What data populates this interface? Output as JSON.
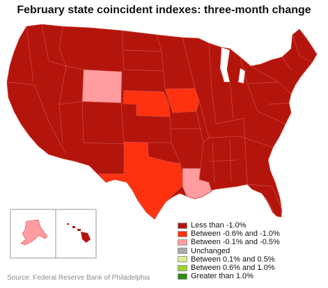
{
  "title": "February state coincident indexes: three-month change",
  "source": "Source: Federal Reserve Bank of Philadelphia",
  "colors": {
    "less_than_neg1": "#b3150c",
    "neg06_neg1": "#ff3210",
    "neg01_neg05": "#ff9ca0",
    "unchanged": "#aaaaaa",
    "pos01_05": "#d7ef8c",
    "pos06_10": "#9bd62a",
    "greater_than_1": "#2e8b12",
    "border": "#d24a40"
  },
  "legend": [
    {
      "label": "Less than -1.0%",
      "color": "#b3150c"
    },
    {
      "label": "Between -0.6% and -1.0%",
      "color": "#ff3210"
    },
    {
      "label": "Between -0.1% and -0.5%",
      "color": "#ff9ca0"
    },
    {
      "label": "Unchanged",
      "color": "#aaaaaa"
    },
    {
      "label": "Between 0.1% and 0.5%",
      "color": "#d7ef8c"
    },
    {
      "label": "Between 0.6% and 1.0%",
      "color": "#9bd62a"
    },
    {
      "label": "Greater than 1.0%",
      "color": "#2e8b12"
    }
  ],
  "highlighted_states": [
    {
      "state": "Wyoming",
      "category": "Between -0.1% and -0.5%"
    },
    {
      "state": "Nebraska",
      "category": "Between -0.6% and -1.0%"
    },
    {
      "state": "Iowa",
      "category": "Between -0.6% and -1.0%"
    },
    {
      "state": "Texas",
      "category": "Between -0.6% and -1.0%"
    },
    {
      "state": "Louisiana",
      "category": "Between -0.1% and -0.5%"
    },
    {
      "state": "Alaska",
      "category": "Between -0.1% and -0.5%"
    },
    {
      "state": "Hawaii",
      "category": "Less than -1.0%"
    }
  ]
}
